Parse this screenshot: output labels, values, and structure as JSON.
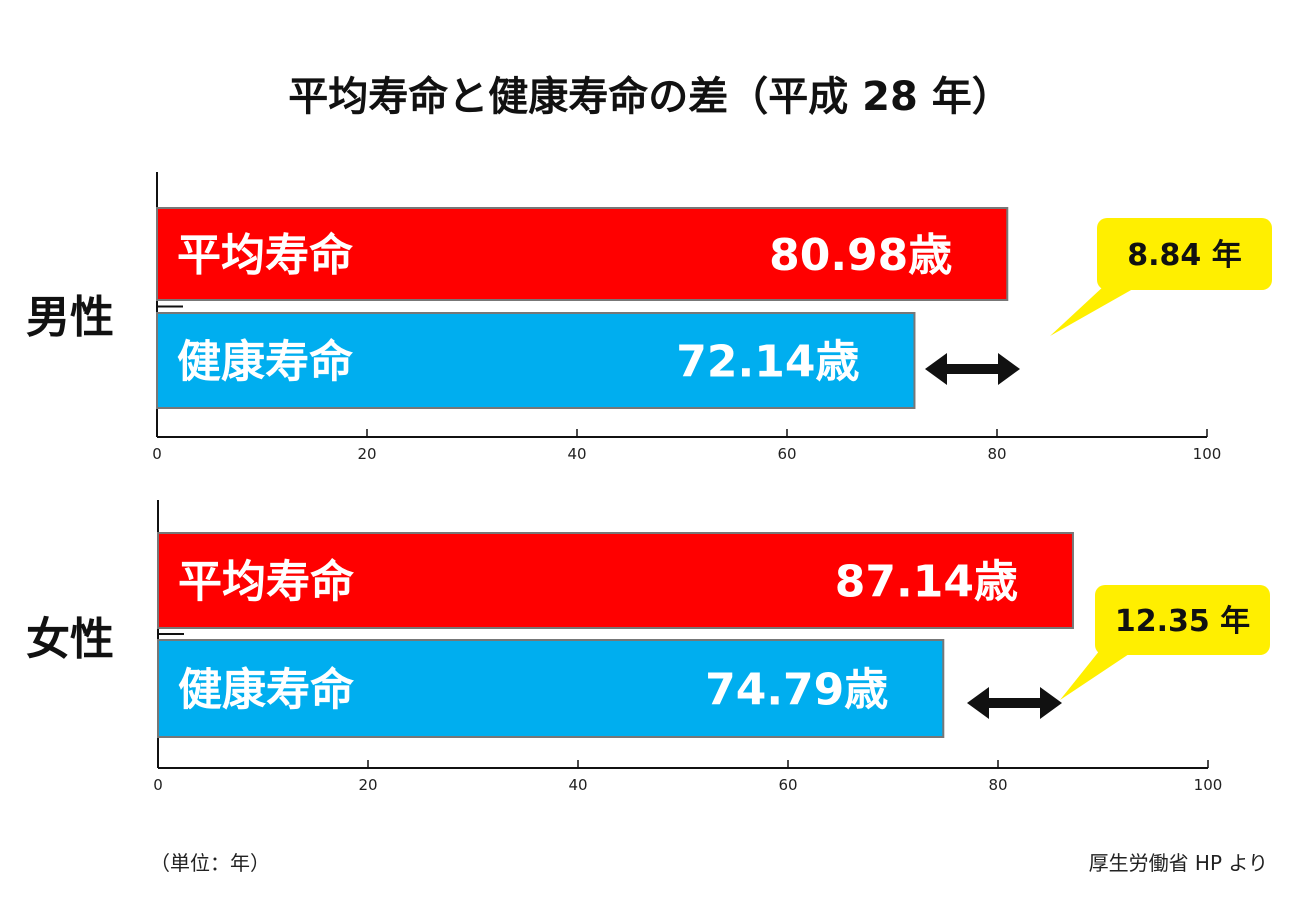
{
  "chart_data": {
    "type": "bar",
    "orientation": "horizontal",
    "title": "平均寿命と健康寿命の差（平成 28 年）",
    "unit_note": "（単位：年）",
    "source": "厚生労働省 HP より",
    "xlim": [
      0,
      100
    ],
    "xticks": [
      "0",
      "20",
      "40",
      "60",
      "80",
      "100"
    ],
    "colors": {
      "average": "#ff0000",
      "healthy": "#00aeef",
      "callout": "#ffef00"
    },
    "groups": [
      {
        "name": "男性",
        "bars": [
          {
            "label": "平均寿命",
            "value": 80.98,
            "value_label": "80.98歳",
            "color": "#ff0000"
          },
          {
            "label": "健康寿命",
            "value": 72.14,
            "value_label": "72.14歳",
            "color": "#00aeef"
          }
        ],
        "difference": 8.84,
        "difference_label": "8.84 年"
      },
      {
        "name": "女性",
        "bars": [
          {
            "label": "平均寿命",
            "value": 87.14,
            "value_label": "87.14歳",
            "color": "#ff0000"
          },
          {
            "label": "健康寿命",
            "value": 74.79,
            "value_label": "74.79歳",
            "color": "#00aeef"
          }
        ],
        "difference": 12.35,
        "difference_label": "12.35 年"
      }
    ]
  }
}
